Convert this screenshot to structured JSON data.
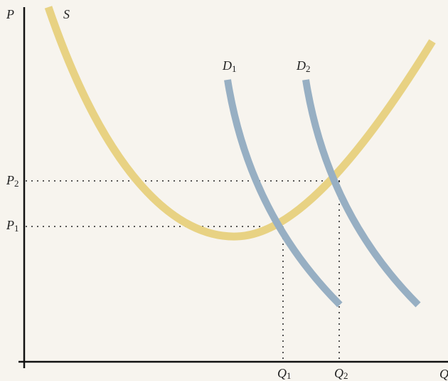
{
  "axes": {
    "y_label": "P",
    "x_label": "Q"
  },
  "curves": {
    "supply": {
      "label": "S"
    },
    "demand_1": {
      "letter": "D",
      "sub": "1"
    },
    "demand_2": {
      "letter": "D",
      "sub": "2"
    }
  },
  "levels": {
    "p2": {
      "letter": "P",
      "sub": "2"
    },
    "p1": {
      "letter": "P",
      "sub": "1"
    },
    "q1": {
      "letter": "Q",
      "sub": "1"
    },
    "q2": {
      "letter": "Q",
      "sub": "2"
    }
  }
}
